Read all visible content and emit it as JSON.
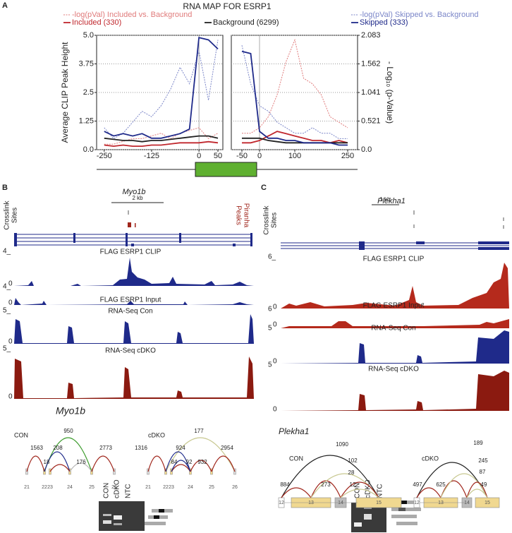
{
  "panel_labels": [
    "A",
    "B",
    "C"
  ],
  "chart_data": {
    "type": "line",
    "title": "RNA MAP FOR ESRP1",
    "ylabel": "Average CLIP Peak Height",
    "y2label": "- Log₁₀ (p-Value)",
    "ylim": [
      0,
      5
    ],
    "yticks": [
      {
        "value": 0,
        "label": "0.0"
      },
      1.25,
      2.5,
      3.75,
      {
        "value": 5,
        "label": "5.0"
      }
    ],
    "y2lim": [
      0,
      2.083
    ],
    "y2ticks": [
      {
        "value": 0,
        "label": "0.0"
      },
      0.521,
      1.041,
      1.562,
      2.083
    ],
    "grid": true,
    "panels": [
      {
        "xlim": [
          -270,
          63
        ],
        "xticks": [
          -250,
          -125,
          0,
          50
        ],
        "x": [
          -250,
          -225,
          -200,
          -175,
          -150,
          -125,
          -100,
          -75,
          -50,
          -25,
          0,
          25,
          50
        ]
      },
      {
        "xlim": [
          -80,
          278
        ],
        "xticks": [
          -50,
          0,
          100,
          250
        ],
        "x": [
          -50,
          -25,
          0,
          25,
          50,
          75,
          100,
          125,
          150,
          175,
          200,
          225,
          250
        ]
      }
    ],
    "series": [
      {
        "name": "-log(pVal) Included vs. Background",
        "color": "#e07b7b",
        "line_style": "dotted",
        "axis": "y2",
        "values": [
          [
            0.1,
            0.1,
            0.15,
            0.2,
            0.2,
            0.25,
            0.3,
            0.2,
            0.3,
            0.35,
            0.4,
            0.2,
            0.3
          ],
          [
            0.3,
            0.3,
            0.4,
            0.6,
            1.0,
            1.6,
            2.0,
            1.3,
            1.2,
            1.0,
            0.6,
            0.5,
            0.4
          ]
        ]
      },
      {
        "name": "Included (330)",
        "color": "#c0272d",
        "line_style": "solid",
        "axis": "y",
        "values": [
          [
            0.2,
            0.15,
            0.2,
            0.15,
            0.15,
            0.2,
            0.2,
            0.25,
            0.3,
            0.3,
            0.3,
            0.35,
            0.3
          ],
          [
            0.3,
            0.3,
            0.4,
            0.6,
            0.8,
            0.7,
            0.6,
            0.5,
            0.4,
            0.4,
            0.3,
            0.4,
            0.3
          ]
        ]
      },
      {
        "name": "Background (6299)",
        "color": "#222222",
        "line_style": "solid",
        "axis": "y",
        "values": [
          [
            0.5,
            0.45,
            0.4,
            0.4,
            0.35,
            0.4,
            0.4,
            0.45,
            0.5,
            0.55,
            0.6,
            0.6,
            0.5
          ],
          [
            0.5,
            0.5,
            0.5,
            0.4,
            0.35,
            0.3,
            0.3,
            0.3,
            0.3,
            0.3,
            0.3,
            0.3,
            0.3
          ]
        ]
      },
      {
        "name": "-log(pVal) Skipped vs. Background",
        "color": "#7b86c8",
        "line_style": "dotted",
        "axis": "y2",
        "values": [
          [
            0.4,
            0.2,
            0.3,
            0.5,
            0.7,
            0.6,
            0.8,
            1.1,
            1.5,
            1.2,
            1.8,
            0.9,
            2.0
          ],
          [
            1.9,
            1.2,
            0.8,
            0.7,
            0.5,
            0.4,
            0.3,
            0.3,
            0.4,
            0.3,
            0.3,
            0.2,
            0.2
          ]
        ]
      },
      {
        "name": "Skipped (333)",
        "color": "#1f2a8a",
        "line_style": "solid",
        "axis": "y",
        "values": [
          [
            0.8,
            0.6,
            0.7,
            0.6,
            0.7,
            0.5,
            0.5,
            0.6,
            0.7,
            0.9,
            4.9,
            4.8,
            4.4
          ],
          [
            4.3,
            4.2,
            0.8,
            0.5,
            0.5,
            0.4,
            0.4,
            0.3,
            0.3,
            0.3,
            0.3,
            0.2,
            0.2
          ]
        ]
      }
    ]
  },
  "panel_b": {
    "gene": "Myo1b",
    "scale": "2 kb",
    "crosslink_label": [
      "Crosslink",
      "Sites"
    ],
    "peaks_label": [
      "Peaks",
      "Piranha"
    ],
    "tracks": [
      {
        "name": "FLAG ESRP1 CLIP",
        "max_label": "4_",
        "zero_label": "0"
      },
      {
        "name": "FLAG ESRP1 Input",
        "max_label": "4_",
        "zero_label": "0"
      },
      {
        "name": "RNA-Seq Con",
        "max_label": "5_",
        "zero_label": "0"
      },
      {
        "name": "RNA-Seq cDKO",
        "max_label": "5_",
        "zero_label": "0"
      }
    ],
    "sashimi": {
      "gene": "Myo1b",
      "samples": [
        {
          "name": "CON",
          "junctions": [
            1563,
            950,
            208,
            18,
            176,
            2773
          ],
          "exons": [
            "21",
            "22",
            "23",
            "24",
            "25",
            "26"
          ]
        },
        {
          "name": "cDKO",
          "junctions": [
            1316,
            177,
            924,
            84,
            92,
            932,
            2954
          ],
          "exons": [
            "21",
            "22",
            "23",
            "24",
            "25",
            "26"
          ]
        }
      ]
    },
    "gel": [
      "CON",
      "cDKO",
      "NTC"
    ]
  },
  "panel_c": {
    "gene": "Plekha1",
    "scale": "1 kb",
    "crosslink_label": [
      "Crosslink",
      "Sites"
    ],
    "tracks": [
      {
        "name": "FLAG ESRP1 CLIP",
        "max_label": "6_",
        "zero_label": "0"
      },
      {
        "name": "FLAG ESRP1 Input",
        "max_label": "6",
        "zero_label": "0"
      },
      {
        "name": "RNA-Seq Con",
        "max_label": "5",
        "zero_label": "0"
      },
      {
        "name": "RNA-Seq cDKO",
        "max_label": "5",
        "zero_label": "0"
      }
    ],
    "sashimi": {
      "gene": "Plekha1",
      "samples": [
        {
          "name": "CON",
          "junctions": [
            1090,
            884,
            273,
            102,
            28,
            12
          ],
          "exons": [
            "12",
            "13",
            "14",
            "15"
          ]
        },
        {
          "name": "cDKO",
          "junctions": [
            189,
            497,
            625,
            245,
            87,
            49
          ],
          "exons": [
            "12",
            "13",
            "14",
            "15"
          ]
        }
      ]
    },
    "gel": [
      "CON",
      "cDKO",
      "NTC"
    ]
  }
}
